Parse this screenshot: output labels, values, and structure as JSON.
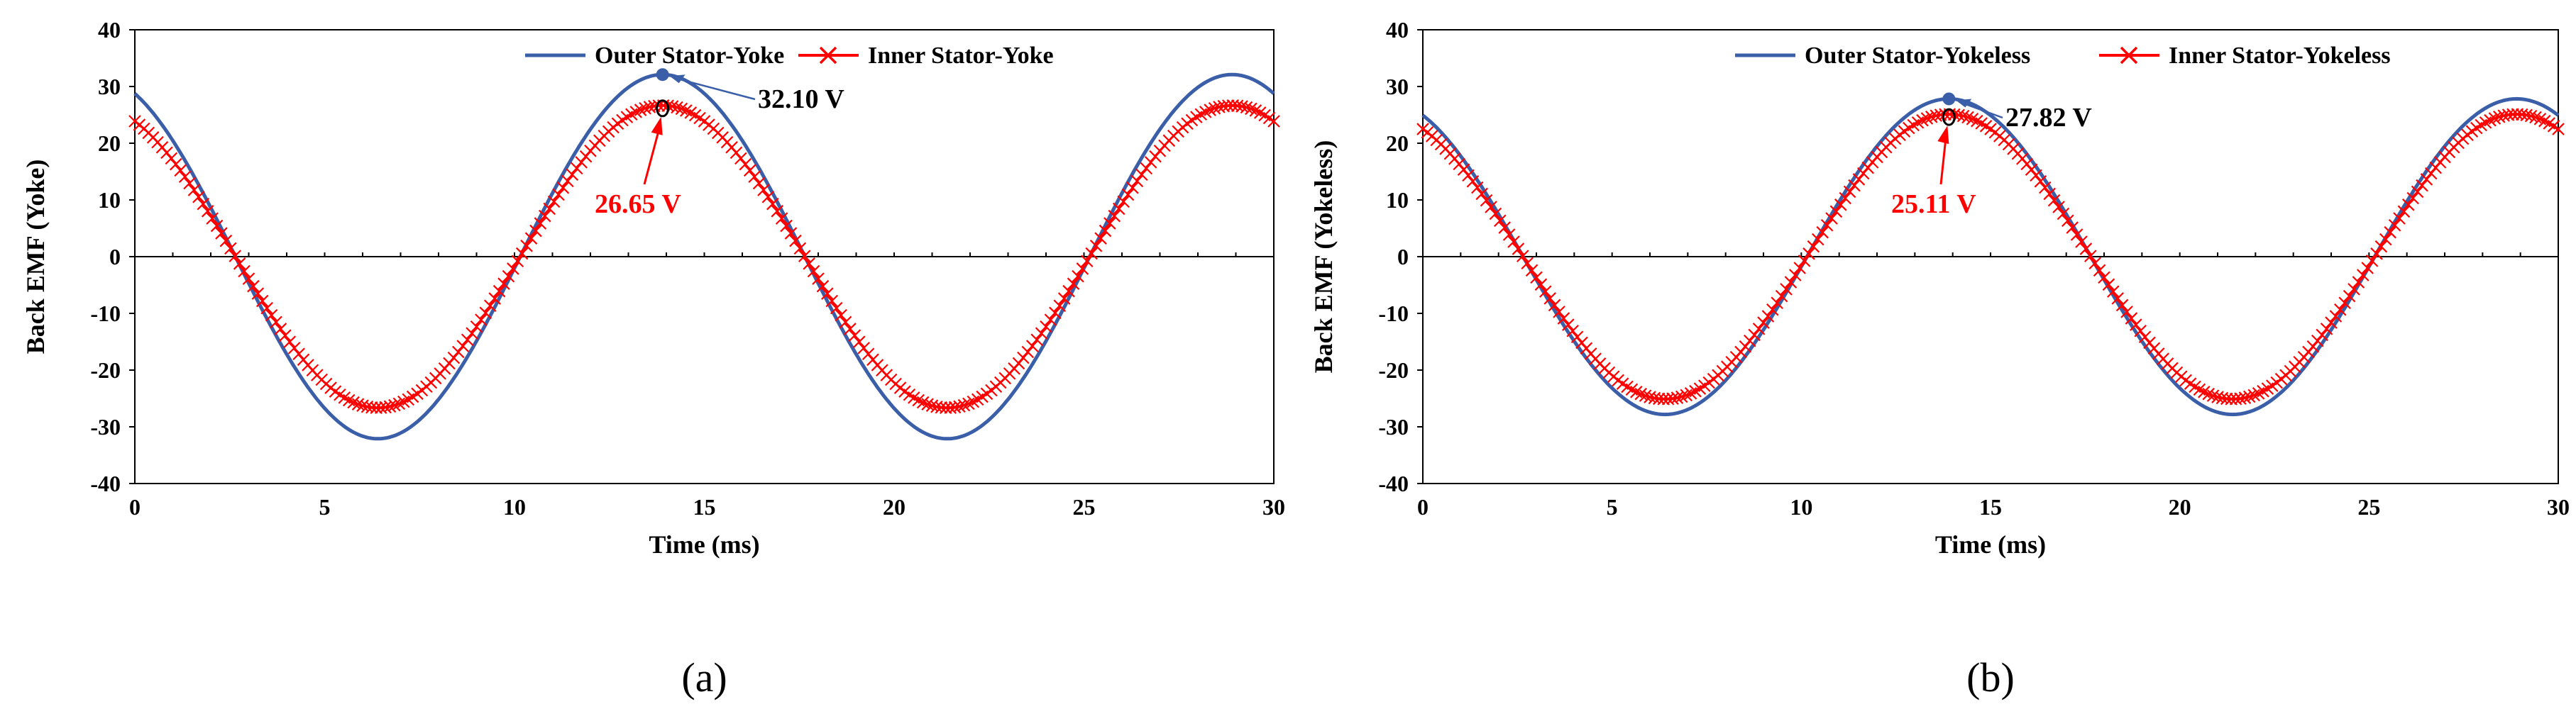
{
  "colors": {
    "outer": "#3a5fa8",
    "inner": "#ff0000",
    "marker_inner": "#000000"
  },
  "chart_data": [
    {
      "type": "line",
      "panel_label": "(a)",
      "ylabel": "Back EMF (Yoke)",
      "xlabel": "Time (ms)",
      "xlim": [
        0,
        30
      ],
      "ylim": [
        -40,
        40
      ],
      "xticks": [
        "0",
        "5",
        "10",
        "15",
        "20",
        "25",
        "30"
      ],
      "yticks": [
        "40",
        "30",
        "20",
        "10",
        "0",
        "-10",
        "-20",
        "-30",
        "-40"
      ],
      "period_ms": 15,
      "series": [
        {
          "name": "Outer Stator-Yoke",
          "amplitude": 32.1,
          "peak_time_ms": 13.9,
          "marker": "none",
          "x": [
            0,
            2.7,
            6.4,
            10.2,
            13.9,
            17.7,
            21.4,
            25.2,
            28.9,
            30
          ],
          "y": [
            28.1,
            0,
            -32.1,
            0,
            32.1,
            0,
            -32.1,
            0,
            32.1,
            28.1
          ]
        },
        {
          "name": "Inner Stator-Yoke",
          "amplitude": 26.65,
          "peak_time_ms": 13.9,
          "marker": "x",
          "x": [
            0,
            2.7,
            6.4,
            10.2,
            13.9,
            17.7,
            21.4,
            25.2,
            28.9,
            30
          ],
          "y": [
            23.3,
            0,
            -26.65,
            0,
            26.65,
            0,
            -26.65,
            0,
            26.65,
            23.3
          ]
        }
      ],
      "annotations": [
        {
          "text": "32.10 V",
          "x": 13.9,
          "y": 32.1,
          "series": "Outer Stator-Yoke"
        },
        {
          "text": "26.65 V",
          "x": 13.9,
          "y": 26.65,
          "series": "Inner Stator-Yoke"
        }
      ],
      "legend_position": "top-right"
    },
    {
      "type": "line",
      "panel_label": "(b)",
      "ylabel": "Back EMF (Yokeless)",
      "xlabel": "Time (ms)",
      "xlim": [
        0,
        30
      ],
      "ylim": [
        -40,
        40
      ],
      "xticks": [
        "0",
        "5",
        "10",
        "15",
        "20",
        "25",
        "30"
      ],
      "yticks": [
        "40",
        "30",
        "20",
        "10",
        "0",
        "-10",
        "-20",
        "-30",
        "-40"
      ],
      "period_ms": 15,
      "series": [
        {
          "name": "Outer Stator-Yokeless",
          "amplitude": 27.82,
          "peak_time_ms": 13.9,
          "marker": "none",
          "x": [
            0,
            2.7,
            6.4,
            10.2,
            13.9,
            17.7,
            21.4,
            25.2,
            28.9,
            30
          ],
          "y": [
            24.4,
            0,
            -27.82,
            0,
            27.82,
            0,
            -27.82,
            0,
            27.82,
            24.4
          ]
        },
        {
          "name": "Inner Stator-Yokeless",
          "amplitude": 25.11,
          "peak_time_ms": 13.9,
          "marker": "x",
          "x": [
            0,
            2.7,
            6.4,
            10.2,
            13.9,
            17.7,
            21.4,
            25.2,
            28.9,
            30
          ],
          "y": [
            22.0,
            0,
            -25.11,
            0,
            25.11,
            0,
            -25.11,
            0,
            25.11,
            22.0
          ]
        }
      ],
      "annotations": [
        {
          "text": "27.82 V",
          "x": 13.9,
          "y": 27.82,
          "series": "Outer Stator-Yokeless"
        },
        {
          "text": "25.11 V",
          "x": 13.9,
          "y": 25.11,
          "series": "Inner Stator-Yokeless"
        }
      ],
      "legend_position": "top-right"
    }
  ]
}
